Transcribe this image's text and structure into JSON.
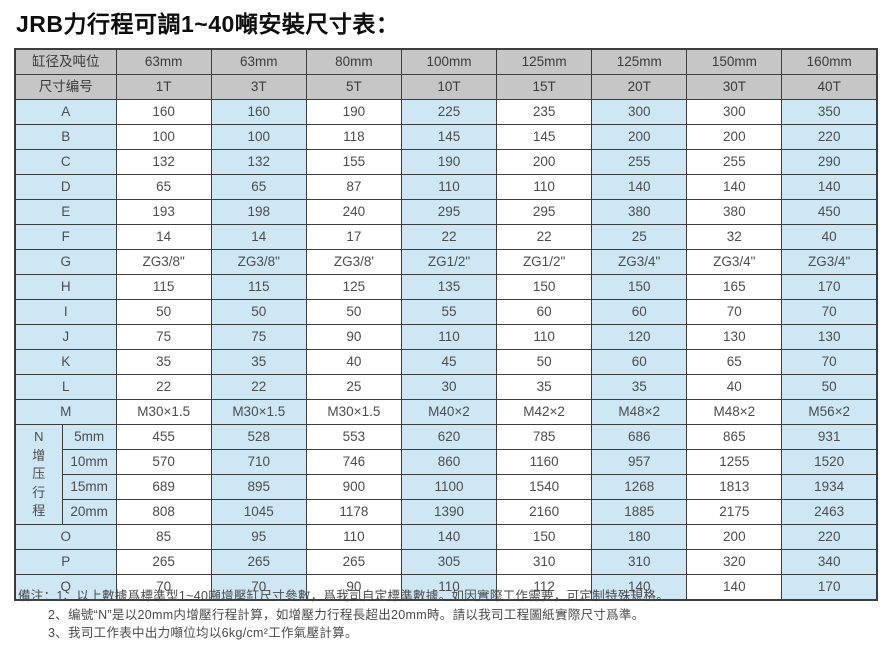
{
  "title": "JRB力行程可調1~40噸安裝尺寸表：",
  "colors": {
    "header_bg": "#c6c6c6",
    "stripe_blue": "#cee7f5",
    "cell_white": "#ffffff",
    "border": "#3d3d3d",
    "text": "#4d4d4d"
  },
  "table": {
    "header": [
      {
        "label": "缸径及吨位",
        "cells": [
          "63mm",
          "63mm",
          "80mm",
          "100mm",
          "125mm",
          "125mm",
          "150mm",
          "160mm"
        ]
      },
      {
        "label": "尺寸编号",
        "cells": [
          "1T",
          "3T",
          "5T",
          "10T",
          "15T",
          "20T",
          "30T",
          "40T"
        ]
      }
    ],
    "rows_top": [
      {
        "label": "A",
        "values": [
          "160",
          "160",
          "190",
          "225",
          "235",
          "300",
          "300",
          "350"
        ]
      },
      {
        "label": "B",
        "values": [
          "100",
          "100",
          "118",
          "145",
          "145",
          "200",
          "200",
          "220"
        ]
      },
      {
        "label": "C",
        "values": [
          "132",
          "132",
          "155",
          "190",
          "200",
          "255",
          "255",
          "290"
        ]
      },
      {
        "label": "D",
        "values": [
          "65",
          "65",
          "87",
          "110",
          "110",
          "140",
          "140",
          "140"
        ]
      },
      {
        "label": "E",
        "values": [
          "193",
          "198",
          "240",
          "295",
          "295",
          "380",
          "380",
          "450"
        ]
      },
      {
        "label": "F",
        "values": [
          "14",
          "14",
          "17",
          "22",
          "22",
          "25",
          "32",
          "40"
        ]
      },
      {
        "label": "G",
        "values": [
          "ZG3/8\"",
          "ZG3/8\"",
          "ZG3/8'",
          "ZG1/2\"",
          "ZG1/2\"",
          "ZG3/4\"",
          "ZG3/4\"",
          "ZG3/4\""
        ]
      },
      {
        "label": "H",
        "values": [
          "115",
          "115",
          "125",
          "135",
          "150",
          "150",
          "165",
          "170"
        ]
      },
      {
        "label": "I",
        "values": [
          "50",
          "50",
          "50",
          "55",
          "60",
          "60",
          "70",
          "70"
        ]
      },
      {
        "label": "J",
        "values": [
          "75",
          "75",
          "90",
          "110",
          "110",
          "120",
          "130",
          "130"
        ]
      },
      {
        "label": "K",
        "values": [
          "35",
          "35",
          "40",
          "45",
          "50",
          "60",
          "65",
          "70"
        ]
      },
      {
        "label": "L",
        "values": [
          "22",
          "22",
          "25",
          "30",
          "35",
          "35",
          "40",
          "50"
        ]
      },
      {
        "label": "M",
        "values": [
          "M30×1.5",
          "M30×1.5",
          "M30×1.5",
          "M40×2",
          "M42×2",
          "M48×2",
          "M48×2",
          "M56×2"
        ]
      }
    ],
    "n_block": {
      "label_chars": [
        "N",
        "增",
        "压",
        "行",
        "程"
      ],
      "rows": [
        {
          "label": "5mm",
          "values": [
            "455",
            "528",
            "553",
            "620",
            "785",
            "686",
            "865",
            "931"
          ]
        },
        {
          "label": "10mm",
          "values": [
            "570",
            "710",
            "746",
            "860",
            "1160",
            "957",
            "1255",
            "1520"
          ]
        },
        {
          "label": "15mm",
          "values": [
            "689",
            "895",
            "900",
            "1100",
            "1540",
            "1268",
            "1813",
            "1934"
          ]
        },
        {
          "label": "20mm",
          "values": [
            "808",
            "1045",
            "1178",
            "1390",
            "2160",
            "1885",
            "2175",
            "2463"
          ]
        }
      ]
    },
    "rows_bottom": [
      {
        "label": "O",
        "values": [
          "85",
          "95",
          "110",
          "140",
          "150",
          "180",
          "200",
          "220"
        ]
      },
      {
        "label": "P",
        "values": [
          "265",
          "265",
          "265",
          "305",
          "310",
          "310",
          "320",
          "340"
        ]
      },
      {
        "label": "Q",
        "values": [
          "70",
          "70",
          "90",
          "110",
          "112",
          "140",
          "140",
          "170"
        ]
      }
    ]
  },
  "notes": {
    "prefix": "備注：",
    "items": [
      "1、以上數據爲標準型1~40噸增壓缸尺寸參數，爲我司自定標準數據。如因實際工作需要，可定制特殊規格。",
      "2、编號“N”是以20mm内增壓行程計算，如增壓力行程長超出20mm時。請以我司工程圖紙實際尺寸爲準。",
      "3、我司工作表中出力噸位均以6kg/cm²工作氣壓計算。"
    ]
  }
}
